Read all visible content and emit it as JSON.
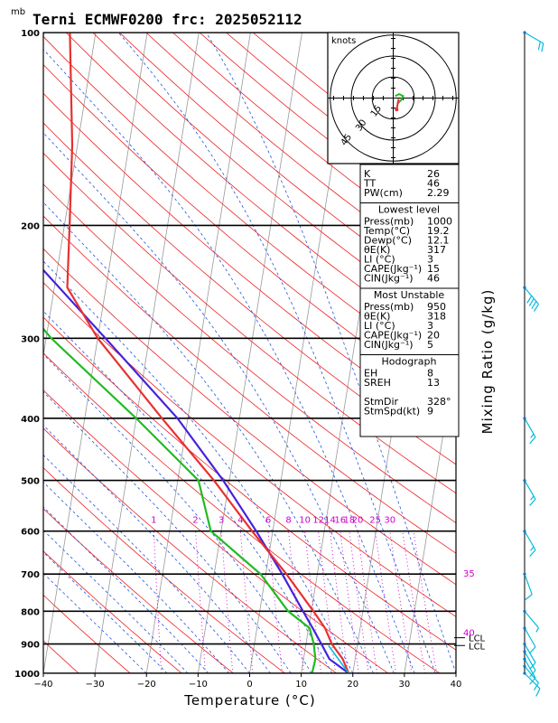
{
  "title": "Terni ECMWF0200  frc: 2025052112",
  "units_label": "mb",
  "xlabel": "Temperature (°C)",
  "right_label": "Mixing Ratio (g/kg)",
  "hodograph": {
    "units_label": "knots",
    "ring_labels": [
      "15",
      "30",
      "45"
    ]
  },
  "lcl_label": "LCL",
  "colors": {
    "temperature": "#e83030",
    "dewpoint": "#22bb22",
    "parcel": "#4422dd",
    "dry_adiabat": "#ee2222",
    "moist_adiabat": "#2255dd",
    "mixing_ratio": "#cc00cc",
    "wind_barb": "#00bbdd",
    "isotherm": "#999999"
  },
  "chart_data": {
    "type": "skew-t",
    "xlabel": "Temperature (°C)",
    "ylabel": "mb",
    "xlim": [
      -40,
      40
    ],
    "ylim_mb": [
      1000,
      100
    ],
    "x_ticks": [
      "−40",
      "−30",
      "−20",
      "−10",
      "0",
      "10",
      "20",
      "30",
      "40"
    ],
    "pressure_ticks": [
      {
        "p": 100,
        "label": "100"
      },
      {
        "p": 200,
        "label": "200"
      },
      {
        "p": 300,
        "label": "300"
      },
      {
        "p": 400,
        "label": "400"
      },
      {
        "p": 500,
        "label": "500"
      },
      {
        "p": 600,
        "label": "600"
      },
      {
        "p": 700,
        "label": "700"
      },
      {
        "p": 800,
        "label": "800"
      },
      {
        "p": 900,
        "label": "900"
      },
      {
        "p": 1000,
        "label": "1000"
      }
    ],
    "mixing_ratio_labels": [
      "1",
      "2",
      "3",
      "4",
      "6",
      "8",
      "10",
      "12",
      "14",
      "16",
      "18",
      "20",
      "25",
      "30",
      "35",
      "40"
    ],
    "temperature": [
      {
        "p": 1000,
        "t": 19.2
      },
      {
        "p": 950,
        "t": 17.6
      },
      {
        "p": 900,
        "t": 15.0
      },
      {
        "p": 850,
        "t": 13.2
      },
      {
        "p": 800,
        "t": 10.4
      },
      {
        "p": 700,
        "t": 4.0
      },
      {
        "p": 600,
        "t": -4.0
      },
      {
        "p": 500,
        "t": -13.0
      },
      {
        "p": 400,
        "t": -25.0
      },
      {
        "p": 300,
        "t": -40.0
      },
      {
        "p": 250,
        "t": -47.5
      },
      {
        "p": 200,
        "t": -49.0
      },
      {
        "p": 150,
        "t": -51.0
      },
      {
        "p": 100,
        "t": -55.0
      }
    ],
    "dewpoint": [
      {
        "p": 1000,
        "t": 12.1
      },
      {
        "p": 950,
        "t": 12.3
      },
      {
        "p": 900,
        "t": 11.5
      },
      {
        "p": 850,
        "t": 10.2
      },
      {
        "p": 800,
        "t": 5.5
      },
      {
        "p": 700,
        "t": -1.0
      },
      {
        "p": 600,
        "t": -12.0
      },
      {
        "p": 500,
        "t": -16.0
      },
      {
        "p": 400,
        "t": -30.0
      },
      {
        "p": 300,
        "t": -49.0
      },
      {
        "p": 250,
        "t": -59.0
      },
      {
        "p": 200,
        "t": -66.0
      },
      {
        "p": 150,
        "t": -76.0
      },
      {
        "p": 100,
        "t": -88.0
      }
    ],
    "parcel": [
      {
        "p": 1000,
        "t": 19.2
      },
      {
        "p": 950,
        "t": 15.0
      },
      {
        "p": 900,
        "t": 13.0
      },
      {
        "p": 850,
        "t": 10.8
      },
      {
        "p": 800,
        "t": 8.4
      },
      {
        "p": 700,
        "t": 3.2
      },
      {
        "p": 600,
        "t": -3.2
      },
      {
        "p": 500,
        "t": -11.2
      },
      {
        "p": 400,
        "t": -22.0
      },
      {
        "p": 300,
        "t": -38.5
      },
      {
        "p": 200,
        "t": -62.0
      },
      {
        "p": 150,
        "t": -76.0
      },
      {
        "p": 100,
        "t": -94.0
      }
    ],
    "lcl_pressures": [
      880,
      905
    ],
    "winds": [
      {
        "p": 1000,
        "dir": 315,
        "spd": 10
      },
      {
        "p": 975,
        "dir": 320,
        "spd": 10
      },
      {
        "p": 950,
        "dir": 330,
        "spd": 10
      },
      {
        "p": 925,
        "dir": 330,
        "spd": 10
      },
      {
        "p": 900,
        "dir": 330,
        "spd": 10
      },
      {
        "p": 850,
        "dir": 330,
        "spd": 10
      },
      {
        "p": 800,
        "dir": 320,
        "spd": 5
      },
      {
        "p": 700,
        "dir": 340,
        "spd": 10
      },
      {
        "p": 600,
        "dir": 330,
        "spd": 15
      },
      {
        "p": 500,
        "dir": 330,
        "spd": 15
      },
      {
        "p": 400,
        "dir": 330,
        "spd": 15
      },
      {
        "p": 250,
        "dir": 320,
        "spd": 40
      },
      {
        "p": 100,
        "dir": 300,
        "spd": 20
      }
    ],
    "hodograph_points": [
      {
        "u": 2,
        "v": -3
      },
      {
        "u": 4,
        "v": -1
      },
      {
        "u": 5,
        "v": 1
      },
      {
        "u": 3,
        "v": 2
      },
      {
        "u": 1,
        "v": 1
      }
    ],
    "storm_motion_vector": {
      "u": -1,
      "v": -3
    }
  },
  "indices": {
    "top": [
      {
        "label": "K",
        "value": "26"
      },
      {
        "label": "TT",
        "value": "46"
      },
      {
        "label": "PW(cm)",
        "value": "2.29"
      }
    ],
    "lowest_level": {
      "heading": "Lowest level",
      "rows": [
        {
          "label": "Press(mb)",
          "value": "1000"
        },
        {
          "label": "Temp(°C)",
          "value": "19.2"
        },
        {
          "label": "Dewp(°C)",
          "value": "12.1"
        },
        {
          "label": "θE(K)",
          "value": "317"
        },
        {
          "label": "LI (°C)",
          "value": "3"
        },
        {
          "label": "CAPE(Jkg⁻¹)",
          "value": "15"
        },
        {
          "label": "CIN(Jkg⁻¹)",
          "value": "46"
        }
      ]
    },
    "most_unstable": {
      "heading": "Most Unstable",
      "rows": [
        {
          "label": "Press(mb)",
          "value": "950"
        },
        {
          "label": "θE(K)",
          "value": "318"
        },
        {
          "label": "LI (°C)",
          "value": "3"
        },
        {
          "label": "CAPE(Jkg⁻¹)",
          "value": "20"
        },
        {
          "label": "CIN(Jkg⁻¹)",
          "value": "5"
        }
      ]
    },
    "hodograph_box": {
      "heading": "Hodograph",
      "rows": [
        {
          "label": "EH",
          "value": "8"
        },
        {
          "label": "SREH",
          "value": "13"
        },
        {
          "label": "",
          "value": ""
        },
        {
          "label": "StmDir",
          "value": "328°"
        },
        {
          "label": "StmSpd(kt)",
          "value": "9"
        }
      ]
    }
  }
}
